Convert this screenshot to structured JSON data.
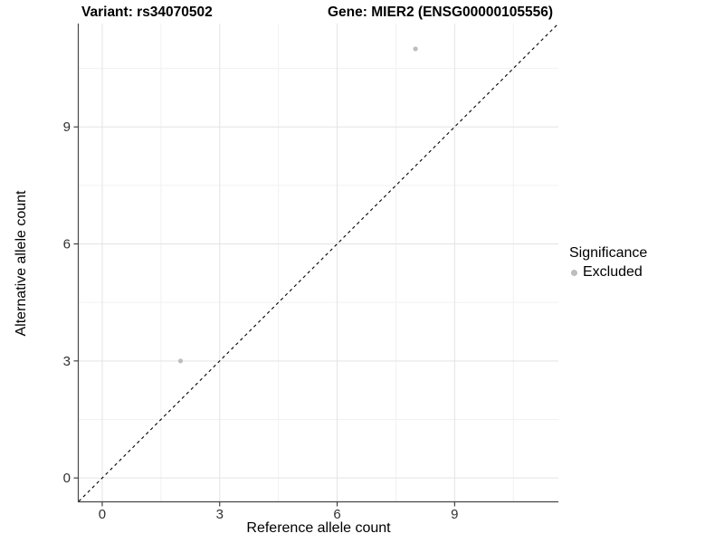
{
  "titles": {
    "left": "Variant: rs34070502",
    "right": "Gene: MIER2 (ENSG00000105556)"
  },
  "legend": {
    "title": "Significance",
    "items": [
      {
        "label": "Excluded",
        "color": "#bdbdbd"
      }
    ]
  },
  "chart_data": {
    "type": "scatter",
    "title": "Variant: rs34070502 — Gene: MIER2 (ENSG00000105556)",
    "xlabel": "Reference allele count",
    "ylabel": "Alternative allele count",
    "xlim": [
      -0.6,
      11.65
    ],
    "ylim": [
      -0.6,
      11.65
    ],
    "x_ticks": [
      0,
      3,
      6,
      9
    ],
    "y_ticks": [
      0,
      3,
      6,
      9
    ],
    "x_minor_ticks": [
      1.5,
      4.5,
      7.5,
      10.5
    ],
    "y_minor_ticks": [
      1.5,
      4.5,
      7.5,
      10.5
    ],
    "grid": true,
    "legend_position": "right",
    "series": [
      {
        "name": "Excluded",
        "color": "#bdbdbd",
        "point_radius": 2.6,
        "points": [
          [
            2,
            3
          ],
          [
            8,
            11
          ]
        ]
      }
    ],
    "reference_line": {
      "type": "identity",
      "slope": 1,
      "intercept": 0,
      "style": "dashed",
      "color": "#000000"
    },
    "colors": {
      "grid_major": "#e3e3e3",
      "grid_minor": "#f1f1f1",
      "axis_line": "#464646",
      "tick_mark": "#333333",
      "tick_text": "#303030"
    }
  }
}
